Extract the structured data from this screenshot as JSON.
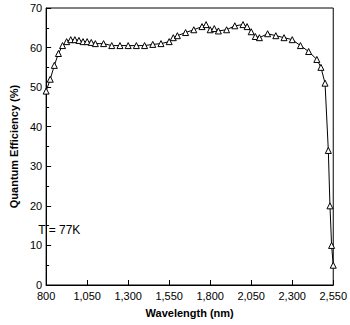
{
  "chart_data": {
    "type": "line",
    "x_label": "Wavelength (nm)",
    "y_label": "Quantum Efficiency (%)",
    "x": [
      800,
      825,
      850,
      875,
      900,
      925,
      950,
      975,
      1000,
      1025,
      1050,
      1075,
      1100,
      1150,
      1200,
      1250,
      1300,
      1350,
      1400,
      1450,
      1500,
      1550,
      1575,
      1600,
      1650,
      1700,
      1750,
      1775,
      1800,
      1825,
      1850,
      1900,
      1950,
      2000,
      2025,
      2050,
      2075,
      2100,
      2150,
      2200,
      2250,
      2300,
      2350,
      2400,
      2450,
      2475,
      2500,
      2520,
      2530,
      2540,
      2550
    ],
    "values": [
      49,
      52,
      55.5,
      58.5,
      60.5,
      61.5,
      62,
      62,
      61.8,
      61.5,
      61.5,
      61.3,
      61,
      61,
      60.5,
      60.5,
      60.5,
      60.5,
      60.5,
      60.8,
      61,
      61.5,
      62.5,
      63,
      63.8,
      64.5,
      65.3,
      65.8,
      64.5,
      64.8,
      64.2,
      64.5,
      65.5,
      65.8,
      65.3,
      64,
      62.8,
      62.5,
      63.5,
      63,
      62.5,
      62,
      60.5,
      59,
      57,
      55,
      51,
      34,
      20,
      10,
      5
    ],
    "color": "#000000",
    "marker": "triangle",
    "line_style": "solid",
    "xlim": [
      800,
      2550
    ],
    "xticks": [
      800,
      1050,
      1300,
      1550,
      1800,
      2050,
      2300,
      2550
    ],
    "ylim": [
      0,
      70
    ],
    "yticks": [
      0,
      10,
      20,
      30,
      40,
      50,
      60,
      70
    ],
    "grid": false,
    "annotations": [
      {
        "text": "T = 77K",
        "x": 880,
        "y": 14
      }
    ]
  }
}
